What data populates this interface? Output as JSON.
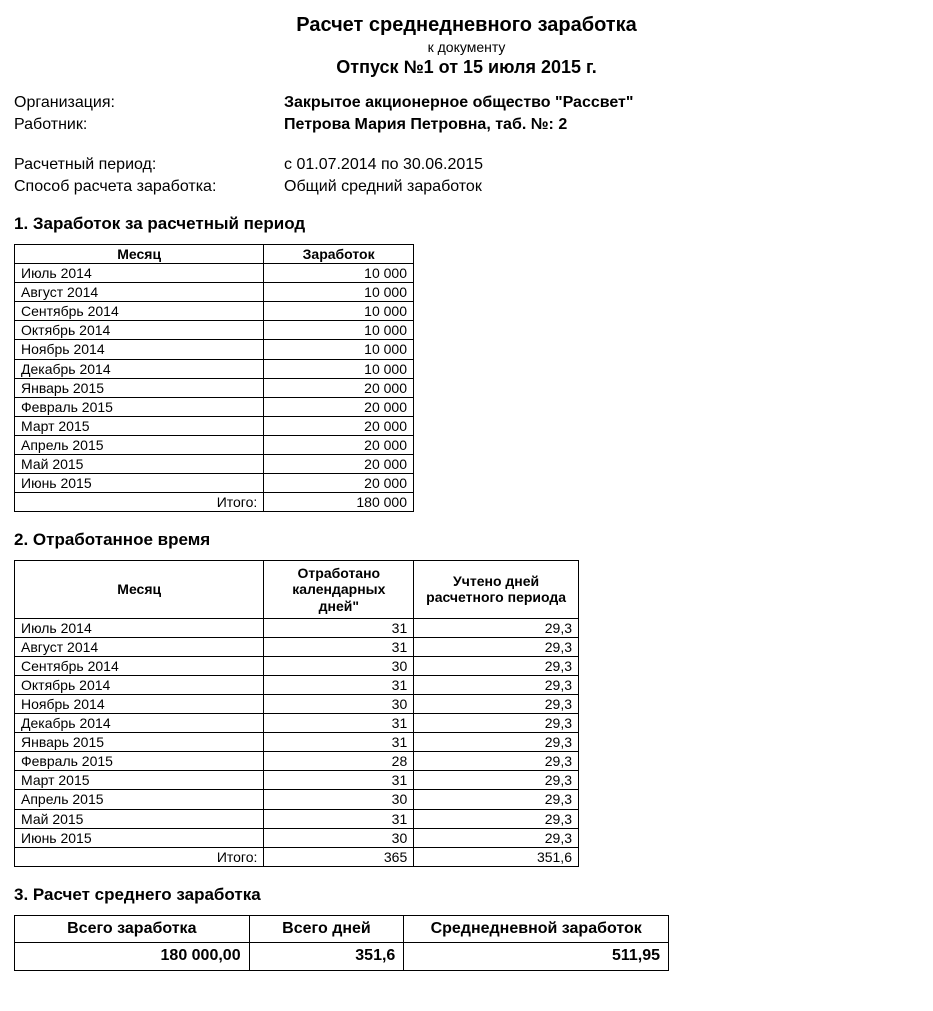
{
  "header": {
    "title": "Расчет среднедневного заработка",
    "subtitle": "к документу",
    "doc_line": "Отпуск №1 от 15 июля 2015 г.",
    "org_label": "Организация:",
    "org_value": "Закрытое акционерное общество \"Рассвет\"",
    "emp_label": "Работник:",
    "emp_value": "Петрова Мария Петровна, таб. №: 2",
    "period_label": "Расчетный период:",
    "period_value": "с 01.07.2014 по 30.06.2015",
    "method_label": "Способ расчета заработка:",
    "method_value": "Общий средний заработок"
  },
  "section1": {
    "heading": "1. Заработок за расчетный период",
    "columns": [
      "Месяц",
      "Заработок"
    ],
    "rows": [
      [
        "Июль 2014",
        "10 000"
      ],
      [
        "Август 2014",
        "10 000"
      ],
      [
        "Сентябрь 2014",
        "10 000"
      ],
      [
        "Октябрь 2014",
        "10 000"
      ],
      [
        "Ноябрь 2014",
        "10 000"
      ],
      [
        "Декабрь 2014",
        "10 000"
      ],
      [
        "Январь 2015",
        "20 000"
      ],
      [
        "Февраль 2015",
        "20 000"
      ],
      [
        "Март 2015",
        "20 000"
      ],
      [
        "Апрель 2015",
        "20 000"
      ],
      [
        "Май 2015",
        "20 000"
      ],
      [
        "Июнь 2015",
        "20 000"
      ]
    ],
    "total_label": "Итого:",
    "total_value": "180 000"
  },
  "section2": {
    "heading": "2. Отработанное время",
    "columns": [
      "Месяц",
      "Отработано календарных дней\"",
      "Учтено дней расчетного периода"
    ],
    "rows": [
      [
        "Июль 2014",
        "31",
        "29,3"
      ],
      [
        "Август 2014",
        "31",
        "29,3"
      ],
      [
        "Сентябрь 2014",
        "30",
        "29,3"
      ],
      [
        "Октябрь 2014",
        "31",
        "29,3"
      ],
      [
        "Ноябрь 2014",
        "30",
        "29,3"
      ],
      [
        "Декабрь 2014",
        "31",
        "29,3"
      ],
      [
        "Январь 2015",
        "31",
        "29,3"
      ],
      [
        "Февраль 2015",
        "28",
        "29,3"
      ],
      [
        "Март 2015",
        "31",
        "29,3"
      ],
      [
        "Апрель 2015",
        "30",
        "29,3"
      ],
      [
        "Май 2015",
        "31",
        "29,3"
      ],
      [
        "Июнь 2015",
        "30",
        "29,3"
      ]
    ],
    "total_label": "Итого:",
    "total_days": "365",
    "total_accounted": "351,6"
  },
  "section3": {
    "heading": "3. Расчет среднего  заработка",
    "columns": [
      "Всего заработка",
      "Всего дней",
      "Среднедневной заработок"
    ],
    "total_earn": "180 000,00",
    "total_days": "351,6",
    "avg_daily": "511,95"
  }
}
